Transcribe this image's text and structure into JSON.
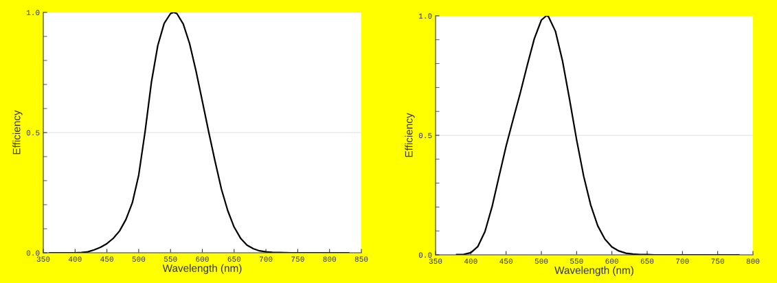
{
  "chart_data": [
    {
      "type": "line",
      "xlabel": "Wavelength (nm)",
      "ylabel": "Efficiency",
      "xlim": [
        350,
        850
      ],
      "xticks": [
        350,
        400,
        450,
        500,
        550,
        600,
        650,
        700,
        750,
        800,
        850
      ],
      "ylim": [
        0,
        1
      ],
      "yticks": [
        {
          "value": 0,
          "label": "0.0"
        },
        {
          "value": 0.1,
          "label": null
        },
        {
          "value": 0.2,
          "label": null
        },
        {
          "value": 0.3,
          "label": null
        },
        {
          "value": 0.4,
          "label": null
        },
        {
          "value": 0.5,
          "label": "0.5"
        },
        {
          "value": 0.6,
          "label": null
        },
        {
          "value": 0.7,
          "label": null
        },
        {
          "value": 0.8,
          "label": null
        },
        {
          "value": 0.9,
          "label": null
        },
        {
          "value": 1,
          "label": "1.0"
        }
      ],
      "grid": "y",
      "marker": "none",
      "line_style": "solid",
      "x": [
        360,
        370,
        380,
        390,
        400,
        410,
        420,
        430,
        440,
        450,
        460,
        470,
        480,
        490,
        500,
        510,
        520,
        530,
        540,
        550,
        555,
        560,
        570,
        580,
        590,
        600,
        610,
        620,
        630,
        640,
        650,
        660,
        670,
        680,
        690,
        700,
        710,
        720,
        740,
        760,
        780,
        800,
        830
      ],
      "series": [
        {
          "color": "#000000",
          "values": [
            0.0,
            0.0,
            0.0,
            0.0,
            0.0,
            0.001,
            0.004,
            0.012,
            0.023,
            0.038,
            0.06,
            0.091,
            0.139,
            0.208,
            0.323,
            0.503,
            0.71,
            0.862,
            0.954,
            0.995,
            1.0,
            0.995,
            0.952,
            0.87,
            0.757,
            0.631,
            0.503,
            0.381,
            0.265,
            0.175,
            0.107,
            0.061,
            0.032,
            0.017,
            0.008,
            0.004,
            0.002,
            0.001,
            0.0,
            0.0,
            0.0,
            0.0,
            0.0
          ]
        }
      ]
    },
    {
      "type": "line",
      "xlabel": "Wavelength (nm)",
      "ylabel": "Efficiency",
      "xlim": [
        350,
        800
      ],
      "xticks": [
        350,
        400,
        450,
        500,
        550,
        600,
        650,
        700,
        750,
        800
      ],
      "ylim": [
        0,
        1
      ],
      "yticks": [
        {
          "value": 0,
          "label": "0.0"
        },
        {
          "value": 0.1,
          "label": null
        },
        {
          "value": 0.2,
          "label": null
        },
        {
          "value": 0.3,
          "label": null
        },
        {
          "value": 0.4,
          "label": null
        },
        {
          "value": 0.5,
          "label": "0.5"
        },
        {
          "value": 0.6,
          "label": null
        },
        {
          "value": 0.7,
          "label": null
        },
        {
          "value": 0.8,
          "label": null
        },
        {
          "value": 0.9,
          "label": null
        },
        {
          "value": 1,
          "label": "1.0"
        }
      ],
      "grid": "y",
      "marker": "none",
      "line_style": "solid",
      "x": [
        380,
        390,
        400,
        410,
        420,
        430,
        440,
        450,
        460,
        470,
        480,
        490,
        500,
        507,
        510,
        520,
        530,
        540,
        550,
        560,
        570,
        580,
        590,
        600,
        610,
        620,
        630,
        640,
        650,
        660,
        680,
        700,
        740,
        780
      ],
      "series": [
        {
          "color": "#000000",
          "values": [
            0.001,
            0.002,
            0.009,
            0.035,
            0.097,
            0.2,
            0.328,
            0.455,
            0.567,
            0.676,
            0.793,
            0.904,
            0.982,
            1.0,
            0.997,
            0.935,
            0.811,
            0.65,
            0.481,
            0.329,
            0.208,
            0.121,
            0.066,
            0.033,
            0.016,
            0.007,
            0.003,
            0.001,
            0.001,
            0.0,
            0.0,
            0.0,
            0.0,
            0.0
          ]
        }
      ]
    }
  ]
}
